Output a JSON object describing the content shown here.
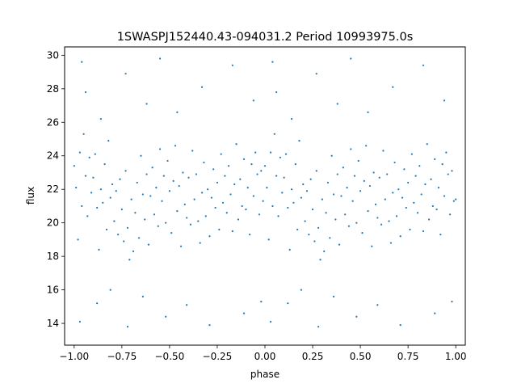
{
  "chart_data": {
    "type": "scatter",
    "title": "1SWASPJ152440.43-094031.2 Period 10993975.0s",
    "xlabel": "phase",
    "ylabel": "flux",
    "xlim": [
      -1.05,
      1.05
    ],
    "ylim": [
      12.7,
      30.5
    ],
    "xticks": [
      -1.0,
      -0.75,
      -0.5,
      -0.25,
      0.0,
      0.25,
      0.5,
      0.75,
      1.0
    ],
    "xtick_labels": [
      "−1.00",
      "−0.75",
      "−0.50",
      "−0.25",
      "0.00",
      "0.25",
      "0.50",
      "0.75",
      "1.00"
    ],
    "yticks": [
      14,
      16,
      18,
      20,
      22,
      24,
      26,
      28,
      30
    ],
    "ytick_labels": [
      "14",
      "16",
      "18",
      "20",
      "22",
      "24",
      "26",
      "28",
      "30"
    ],
    "marker_color": "#1f77b4",
    "grid": false,
    "series": [
      {
        "points": [
          [
            -1.0,
            23.4
          ],
          [
            -0.99,
            22.1
          ],
          [
            -0.98,
            19.0
          ],
          [
            -0.97,
            24.2
          ],
          [
            -0.96,
            21.0
          ],
          [
            -0.95,
            25.3
          ],
          [
            -0.94,
            22.8
          ],
          [
            -0.93,
            20.4
          ],
          [
            -0.92,
            23.9
          ],
          [
            -0.91,
            21.8
          ],
          [
            -0.9,
            22.7
          ],
          [
            -0.89,
            24.1
          ],
          [
            -0.88,
            20.9
          ],
          [
            -0.87,
            18.4
          ],
          [
            -0.86,
            22.0
          ],
          [
            -0.85,
            21.2
          ],
          [
            -0.84,
            23.5
          ],
          [
            -0.83,
            19.6
          ],
          [
            -0.82,
            24.9
          ],
          [
            -0.81,
            21.5
          ],
          [
            -0.8,
            22.3
          ],
          [
            -0.79,
            20.1
          ],
          [
            -0.78,
            21.9
          ],
          [
            -0.77,
            19.3
          ],
          [
            -0.76,
            22.6
          ],
          [
            -0.75,
            20.8
          ],
          [
            -0.74,
            18.9
          ],
          [
            -0.73,
            23.1
          ],
          [
            -0.72,
            19.7
          ],
          [
            -0.71,
            17.8
          ],
          [
            -0.7,
            21.4
          ],
          [
            -0.69,
            18.3
          ],
          [
            -0.68,
            20.6
          ],
          [
            -0.67,
            22.4
          ],
          [
            -0.66,
            19.1
          ],
          [
            -0.65,
            24.0
          ],
          [
            -0.64,
            21.7
          ],
          [
            -0.63,
            20.2
          ],
          [
            -0.62,
            22.9
          ],
          [
            -0.61,
            18.7
          ],
          [
            -0.6,
            21.6
          ],
          [
            -0.59,
            23.3
          ],
          [
            -0.58,
            20.5
          ],
          [
            -0.57,
            22.1
          ],
          [
            -0.56,
            19.8
          ],
          [
            -0.55,
            24.4
          ],
          [
            -0.54,
            21.3
          ],
          [
            -0.53,
            22.8
          ],
          [
            -0.52,
            20.0
          ],
          [
            -0.51,
            23.7
          ],
          [
            -0.5,
            21.9
          ],
          [
            -0.49,
            19.4
          ],
          [
            -0.48,
            22.5
          ],
          [
            -0.47,
            24.6
          ],
          [
            -0.46,
            20.7
          ],
          [
            -0.45,
            22.2
          ],
          [
            -0.44,
            18.6
          ],
          [
            -0.43,
            23.0
          ],
          [
            -0.42,
            21.1
          ],
          [
            -0.41,
            20.3
          ],
          [
            -0.4,
            22.7
          ],
          [
            -0.39,
            19.9
          ],
          [
            -0.38,
            24.3
          ],
          [
            -0.37,
            21.4
          ],
          [
            -0.36,
            22.9
          ],
          [
            -0.35,
            20.1
          ],
          [
            -0.34,
            18.8
          ],
          [
            -0.33,
            21.8
          ],
          [
            -0.32,
            23.6
          ],
          [
            -0.31,
            20.4
          ],
          [
            -0.3,
            22.0
          ],
          [
            -0.29,
            19.2
          ],
          [
            -0.28,
            21.5
          ],
          [
            -0.27,
            23.2
          ],
          [
            -0.26,
            20.9
          ],
          [
            -0.25,
            22.4
          ],
          [
            -0.24,
            19.6
          ],
          [
            -0.23,
            24.1
          ],
          [
            -0.22,
            21.2
          ],
          [
            -0.21,
            22.8
          ],
          [
            -0.2,
            20.6
          ],
          [
            -0.19,
            23.4
          ],
          [
            -0.18,
            21.7
          ],
          [
            -0.17,
            19.5
          ],
          [
            -0.16,
            22.3
          ],
          [
            -0.15,
            24.7
          ],
          [
            -0.14,
            20.2
          ],
          [
            -0.13,
            22.6
          ],
          [
            -0.12,
            21.0
          ],
          [
            -0.11,
            23.8
          ],
          [
            -0.1,
            20.8
          ],
          [
            -0.09,
            22.1
          ],
          [
            -0.08,
            19.3
          ],
          [
            -0.07,
            23.5
          ],
          [
            -0.06,
            21.6
          ],
          [
            -0.05,
            24.2
          ],
          [
            -0.04,
            22.9
          ],
          [
            -0.03,
            20.5
          ],
          [
            -0.02,
            23.1
          ],
          [
            -0.01,
            21.3
          ],
          [
            0.0,
            23.4
          ],
          [
            0.01,
            22.1
          ],
          [
            0.02,
            19.0
          ],
          [
            0.03,
            24.2
          ],
          [
            0.04,
            21.0
          ],
          [
            0.05,
            25.3
          ],
          [
            0.06,
            22.8
          ],
          [
            0.07,
            20.4
          ],
          [
            0.08,
            23.9
          ],
          [
            0.09,
            21.8
          ],
          [
            0.1,
            22.7
          ],
          [
            0.11,
            24.1
          ],
          [
            0.12,
            20.9
          ],
          [
            0.13,
            18.4
          ],
          [
            0.14,
            22.0
          ],
          [
            0.15,
            21.2
          ],
          [
            0.16,
            23.5
          ],
          [
            0.17,
            19.6
          ],
          [
            0.18,
            24.9
          ],
          [
            0.19,
            21.5
          ],
          [
            0.2,
            22.3
          ],
          [
            0.21,
            20.1
          ],
          [
            0.22,
            21.9
          ],
          [
            0.23,
            19.3
          ],
          [
            0.24,
            22.6
          ],
          [
            0.25,
            20.8
          ],
          [
            0.26,
            18.9
          ],
          [
            0.27,
            23.1
          ],
          [
            0.28,
            19.7
          ],
          [
            0.29,
            17.8
          ],
          [
            0.3,
            21.4
          ],
          [
            0.31,
            18.3
          ],
          [
            0.32,
            20.6
          ],
          [
            0.33,
            22.4
          ],
          [
            0.34,
            19.1
          ],
          [
            0.35,
            24.0
          ],
          [
            0.36,
            21.7
          ],
          [
            0.37,
            20.2
          ],
          [
            0.38,
            22.9
          ],
          [
            0.39,
            18.7
          ],
          [
            0.4,
            21.6
          ],
          [
            0.41,
            23.3
          ],
          [
            0.42,
            20.5
          ],
          [
            0.43,
            22.1
          ],
          [
            0.44,
            19.8
          ],
          [
            0.45,
            24.4
          ],
          [
            0.46,
            21.3
          ],
          [
            0.47,
            22.8
          ],
          [
            0.48,
            20.0
          ],
          [
            0.49,
            23.7
          ],
          [
            0.5,
            21.9
          ],
          [
            0.51,
            19.4
          ],
          [
            0.52,
            22.5
          ],
          [
            0.53,
            24.6
          ],
          [
            0.54,
            20.7
          ],
          [
            0.55,
            22.2
          ],
          [
            0.56,
            18.6
          ],
          [
            0.57,
            23.0
          ],
          [
            0.58,
            21.1
          ],
          [
            0.59,
            20.3
          ],
          [
            0.6,
            22.7
          ],
          [
            0.61,
            19.9
          ],
          [
            0.62,
            24.3
          ],
          [
            0.63,
            21.4
          ],
          [
            0.64,
            22.9
          ],
          [
            0.65,
            20.1
          ],
          [
            0.66,
            18.8
          ],
          [
            0.67,
            21.8
          ],
          [
            0.68,
            23.6
          ],
          [
            0.69,
            20.4
          ],
          [
            0.7,
            22.0
          ],
          [
            0.71,
            19.2
          ],
          [
            0.72,
            21.5
          ],
          [
            0.73,
            23.2
          ],
          [
            0.74,
            20.9
          ],
          [
            0.75,
            22.4
          ],
          [
            0.76,
            19.6
          ],
          [
            0.77,
            24.1
          ],
          [
            0.78,
            21.2
          ],
          [
            0.79,
            22.8
          ],
          [
            0.8,
            20.6
          ],
          [
            0.81,
            23.4
          ],
          [
            0.82,
            21.7
          ],
          [
            0.83,
            19.5
          ],
          [
            0.84,
            22.3
          ],
          [
            0.85,
            24.7
          ],
          [
            0.86,
            20.2
          ],
          [
            0.87,
            22.6
          ],
          [
            0.88,
            21.0
          ],
          [
            0.89,
            23.8
          ],
          [
            0.9,
            20.8
          ],
          [
            0.91,
            22.1
          ],
          [
            0.92,
            19.3
          ],
          [
            0.93,
            23.5
          ],
          [
            0.94,
            21.6
          ],
          [
            0.95,
            24.2
          ],
          [
            0.96,
            22.9
          ],
          [
            0.97,
            20.5
          ],
          [
            0.98,
            23.1
          ],
          [
            0.99,
            21.3
          ],
          [
            1.0,
            21.4
          ],
          [
            -0.96,
            29.6
          ],
          [
            -0.94,
            27.8
          ],
          [
            -0.86,
            26.2
          ],
          [
            -0.73,
            28.9
          ],
          [
            -0.62,
            27.1
          ],
          [
            -0.55,
            29.8
          ],
          [
            -0.46,
            26.6
          ],
          [
            -0.33,
            28.1
          ],
          [
            -0.17,
            29.4
          ],
          [
            -0.06,
            27.3
          ],
          [
            0.04,
            29.6
          ],
          [
            0.06,
            27.8
          ],
          [
            0.14,
            26.2
          ],
          [
            0.27,
            28.9
          ],
          [
            0.38,
            27.1
          ],
          [
            0.45,
            29.8
          ],
          [
            0.54,
            26.6
          ],
          [
            0.67,
            28.1
          ],
          [
            0.83,
            29.4
          ],
          [
            0.94,
            27.3
          ],
          [
            -0.97,
            14.1
          ],
          [
            -0.88,
            15.2
          ],
          [
            -0.81,
            16.0
          ],
          [
            -0.72,
            13.8
          ],
          [
            -0.64,
            15.6
          ],
          [
            -0.52,
            14.4
          ],
          [
            -0.41,
            15.1
          ],
          [
            -0.29,
            13.9
          ],
          [
            -0.11,
            14.6
          ],
          [
            -0.02,
            15.3
          ],
          [
            0.03,
            14.1
          ],
          [
            0.12,
            15.2
          ],
          [
            0.19,
            16.0
          ],
          [
            0.28,
            13.8
          ],
          [
            0.36,
            15.6
          ],
          [
            0.48,
            14.4
          ],
          [
            0.59,
            15.1
          ],
          [
            0.71,
            13.9
          ],
          [
            0.89,
            14.6
          ],
          [
            0.98,
            15.3
          ]
        ]
      }
    ]
  }
}
